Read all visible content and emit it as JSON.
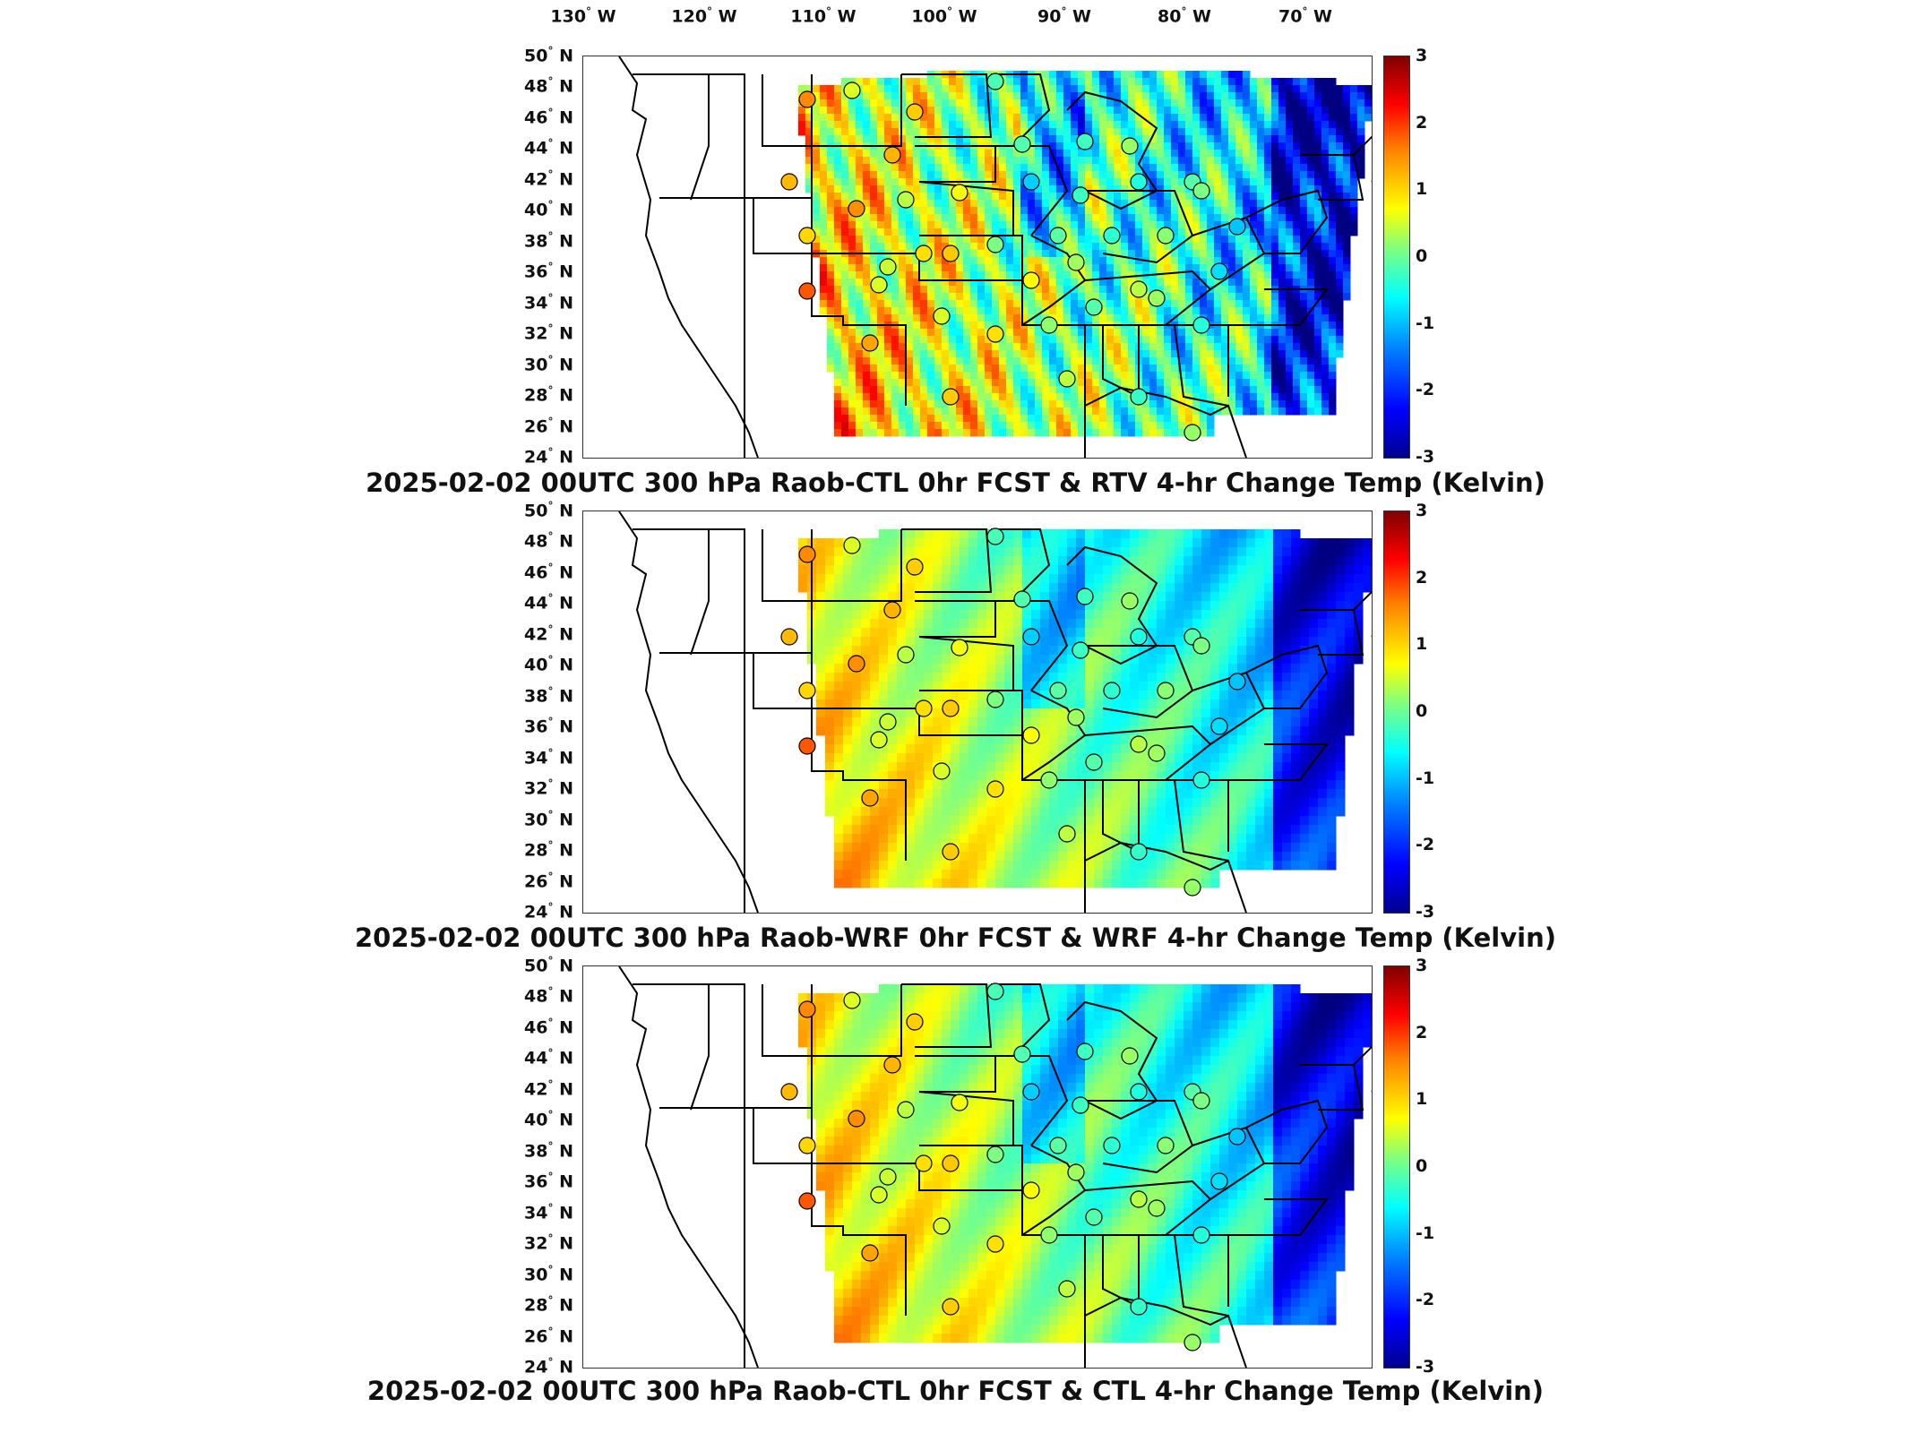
{
  "lon_ticks": [
    {
      "label": "130",
      "suffix": " W"
    },
    {
      "label": "120",
      "suffix": " W"
    },
    {
      "label": "110",
      "suffix": " W"
    },
    {
      "label": "100",
      "suffix": " W"
    },
    {
      "label": "90",
      "suffix": " W"
    },
    {
      "label": "80",
      "suffix": " W"
    },
    {
      "label": "70",
      "suffix": " W"
    }
  ],
  "lat_ticks": [
    {
      "label": "50",
      "suffix": " N"
    },
    {
      "label": "48",
      "suffix": " N"
    },
    {
      "label": "46",
      "suffix": " N"
    },
    {
      "label": "44",
      "suffix": " N"
    },
    {
      "label": "42",
      "suffix": " N"
    },
    {
      "label": "40",
      "suffix": " N"
    },
    {
      "label": "38",
      "suffix": " N"
    },
    {
      "label": "36",
      "suffix": " N"
    },
    {
      "label": "34",
      "suffix": " N"
    },
    {
      "label": "32",
      "suffix": " N"
    },
    {
      "label": "30",
      "suffix": " N"
    },
    {
      "label": "28",
      "suffix": " N"
    },
    {
      "label": "26",
      "suffix": " N"
    },
    {
      "label": "24",
      "suffix": " N"
    }
  ],
  "colorbar": {
    "ticks": [
      "3",
      "2",
      "1",
      "0",
      "-1",
      "-2",
      "-3"
    ]
  },
  "panels": [
    {
      "title": "2025-02-02 00UTC 300 hPa Raob-CTL 0hr FCST & RTV 4-hr Change Temp (Kelvin)",
      "pattern": "noisy"
    },
    {
      "title": "2025-02-02 00UTC 300 hPa Raob-WRF 0hr FCST & WRF 4-hr Change Temp (Kelvin)",
      "pattern": "smooth"
    },
    {
      "title": "2025-02-02 00UTC 300 hPa Raob-CTL 0hr FCST & CTL 4-hr Change Temp (Kelvin)",
      "pattern": "smooth"
    }
  ],
  "colors": {
    "warm": "#ff3000",
    "cool": "#0050ff",
    "neutral": "#40ffc0"
  }
}
